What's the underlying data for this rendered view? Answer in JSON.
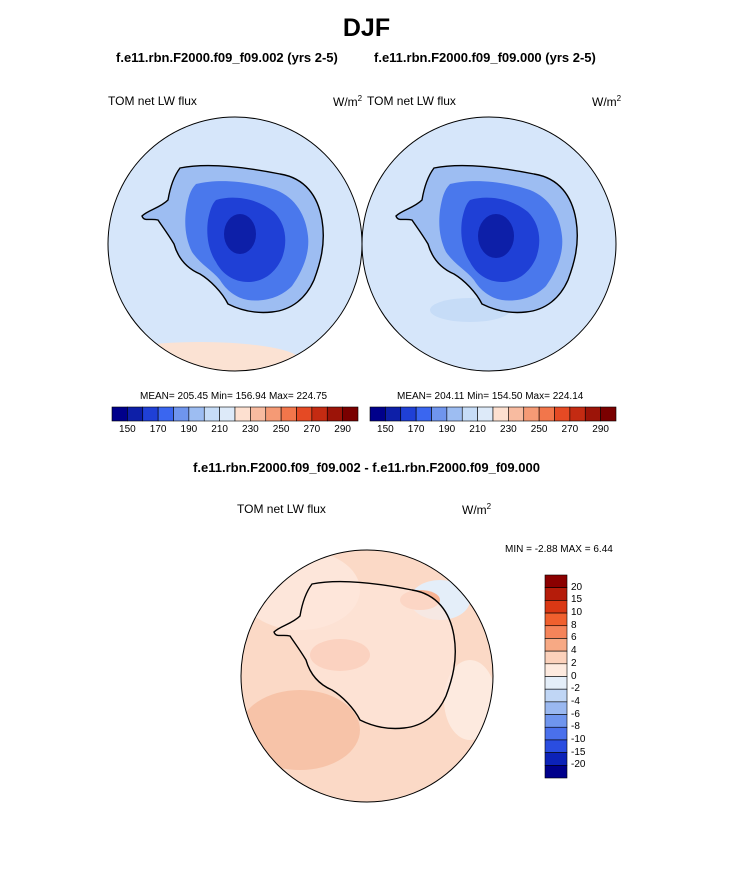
{
  "title": "DJF",
  "panels": [
    {
      "run_label": "f.e11.rbn.F2000.f09_f09.002 (yrs 2-5)",
      "variable": "TOM net LW flux",
      "units": "W/m",
      "units_sup": "2",
      "stats": "MEAN= 205.45  Min= 156.94  Max= 224.75"
    },
    {
      "run_label": "f.e11.rbn.F2000.f09_f09.000 (yrs 2-5)",
      "variable": "TOM net LW flux",
      "units": "W/m",
      "units_sup": "2",
      "stats": "MEAN= 204.11  Min= 154.50  Max= 224.14"
    }
  ],
  "abs_colorbar": {
    "colors": [
      "#00008b",
      "#0d1fa8",
      "#1f40d6",
      "#3a66f0",
      "#6f95ee",
      "#9dbdf2",
      "#c6dcf7",
      "#ddeaf9",
      "#fde0d0",
      "#f8bba0",
      "#f59a75",
      "#f2764b",
      "#e54a24",
      "#c42b12",
      "#9c1408",
      "#7a0000"
    ],
    "labels": [
      "150",
      "170",
      "190",
      "210",
      "230",
      "250",
      "270",
      "290"
    ]
  },
  "diff": {
    "title": "f.e11.rbn.F2000.f09_f09.002 - f.e11.rbn.F2000.f09_f09.000",
    "variable": "TOM net LW flux",
    "units": "W/m",
    "units_sup": "2",
    "stats": "MIN =  -2.88 MAX =   6.44",
    "colorbar": {
      "colors": [
        "#8b0000",
        "#b51c0a",
        "#da3814",
        "#f0602e",
        "#f5845a",
        "#f7a984",
        "#fbd1bb",
        "#fdeadf",
        "#e4eef9",
        "#c0d6f5",
        "#9ab8f0",
        "#6f95ee",
        "#4a70ec",
        "#2a4de0",
        "#0c22b8",
        "#00008b"
      ],
      "labels": [
        "20",
        "15",
        "10",
        "8",
        "6",
        "4",
        "2",
        "0",
        "-2",
        "-4",
        "-6",
        "-8",
        "-10",
        "-15",
        "-20"
      ]
    }
  }
}
